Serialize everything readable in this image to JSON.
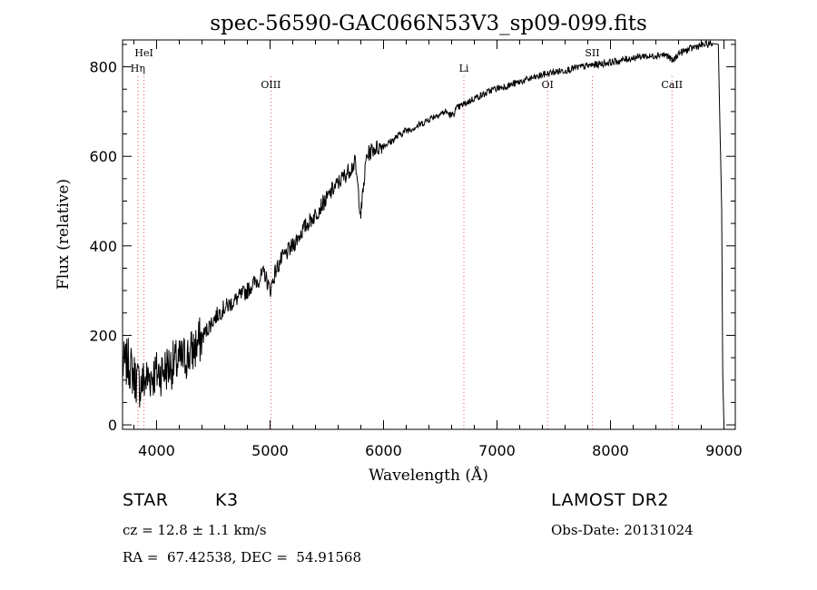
{
  "chart_data": {
    "type": "line",
    "title": "spec-56590-GAC066N53V3_sp09-099.fits",
    "xlabel": "Wavelength (Å)",
    "ylabel": "Flux (relative)",
    "xlim": [
      3700,
      9100
    ],
    "ylim": [
      -10,
      860
    ],
    "xticks": [
      4000,
      5000,
      6000,
      7000,
      8000,
      9000
    ],
    "xtick_labels": [
      "4000",
      "5000",
      "6000",
      "7000",
      "8000",
      "9000"
    ],
    "yticks": [
      0,
      200,
      400,
      600,
      800
    ],
    "ytick_labels": [
      "0",
      "200",
      "400",
      "600",
      "800"
    ],
    "grid": false,
    "series": [
      {
        "x": [
          3700,
          3750,
          3800,
          3850,
          3900,
          3950,
          4000,
          4050,
          4100,
          4150,
          4200,
          4250,
          4300,
          4350,
          4400,
          4450,
          4500,
          4550,
          4600,
          4650,
          4700,
          4750,
          4800,
          4850,
          4900,
          4950,
          5000,
          5050,
          5100,
          5150,
          5200,
          5250,
          5300,
          5350,
          5400,
          5450,
          5500,
          5550,
          5600,
          5650,
          5700,
          5750,
          5800,
          5850,
          5900,
          5950,
          6000,
          6050,
          6100,
          6150,
          6200,
          6250,
          6300,
          6350,
          6400,
          6450,
          6500,
          6550,
          6600,
          6650,
          6700,
          6750,
          6800,
          6850,
          6900,
          6950,
          7000,
          7050,
          7100,
          7150,
          7200,
          7250,
          7300,
          7350,
          7400,
          7450,
          7500,
          7550,
          7600,
          7650,
          7700,
          7750,
          7800,
          7850,
          7900,
          7950,
          8000,
          8050,
          8100,
          8150,
          8200,
          8250,
          8300,
          8350,
          8400,
          8450,
          8500,
          8550,
          8600,
          8650,
          8700,
          8750,
          8800,
          8850,
          8900,
          8950,
          8980,
          8990,
          9000
        ],
        "y": [
          130,
          140,
          110,
          90,
          100,
          110,
          115,
          120,
          130,
          135,
          140,
          150,
          160,
          175,
          195,
          215,
          235,
          250,
          262,
          270,
          280,
          290,
          300,
          315,
          325,
          340,
          300,
          345,
          370,
          385,
          400,
          420,
          440,
          455,
          470,
          490,
          505,
          525,
          540,
          555,
          570,
          585,
          470,
          600,
          615,
          620,
          625,
          630,
          640,
          650,
          658,
          662,
          668,
          675,
          683,
          690,
          695,
          700,
          690,
          708,
          715,
          722,
          730,
          735,
          740,
          748,
          752,
          755,
          758,
          762,
          766,
          770,
          774,
          777,
          782,
          785,
          788,
          790,
          792,
          795,
          798,
          800,
          802,
          804,
          806,
          808,
          810,
          812,
          814,
          818,
          820,
          822,
          825,
          822,
          826,
          828,
          825,
          812,
          830,
          835,
          840,
          845,
          848,
          850,
          852,
          850,
          480,
          100,
          0
        ]
      }
    ],
    "lines": [
      {
        "label": "Hη",
        "x": 3835
      },
      {
        "label": "HeI",
        "x": 3889
      },
      {
        "label": "OIII",
        "x": 5007
      },
      {
        "label": "Li",
        "x": 6708
      },
      {
        "label": "OI",
        "x": 7445
      },
      {
        "label": "SII",
        "x": 7840
      },
      {
        "label": "CaII",
        "x": 8542
      }
    ]
  },
  "info": {
    "object_class": "STAR",
    "subclass": "K3",
    "survey": "LAMOST DR2",
    "redshift": "cz = 12.8 ± 1.1 km/s",
    "obs_date": "Obs-Date: 20131024",
    "coords": "RA =  67.42538, DEC =  54.91568"
  }
}
